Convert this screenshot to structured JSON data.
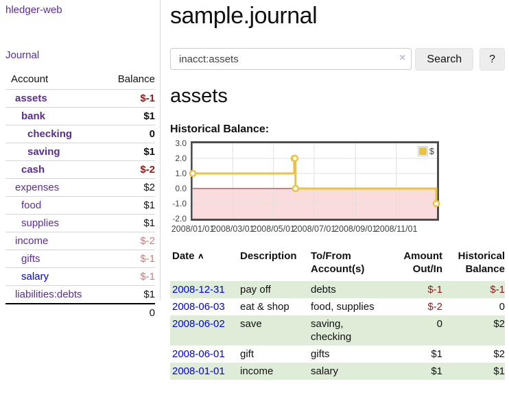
{
  "sidebar": {
    "app_title": "hledger-web",
    "journal_link": "Journal",
    "accounts_header": {
      "account": "Account",
      "balance": "Balance"
    },
    "accounts": [
      {
        "name": "assets",
        "balance": "$-1"
      },
      {
        "name": "bank",
        "balance": "$1"
      },
      {
        "name": "checking",
        "balance": "0"
      },
      {
        "name": "saving",
        "balance": "$1"
      },
      {
        "name": "cash",
        "balance": "$-2"
      },
      {
        "name": "expenses",
        "balance": "$2"
      },
      {
        "name": "food",
        "balance": "$1"
      },
      {
        "name": "supplies",
        "balance": "$1"
      },
      {
        "name": "income",
        "balance": "$-2"
      },
      {
        "name": "gifts",
        "balance": "$-1"
      },
      {
        "name": "salary",
        "balance": "$-1"
      },
      {
        "name": "liabilities:debts",
        "balance": "$1"
      }
    ],
    "total": "0"
  },
  "main": {
    "title": "sample.journal",
    "search": {
      "value": "inacct:assets",
      "clear_icon": "×",
      "button_label": "Search",
      "help_label": "?"
    },
    "account_heading": "assets",
    "register": {
      "headers": [
        "Date",
        "Description",
        "To/From Account(s)",
        "Amount Out/In",
        "Historical Balance"
      ],
      "sort_icon": "∧",
      "rows": [
        {
          "date": "2008-12-31",
          "description": "pay off",
          "accounts": "debts",
          "amount": "$-1",
          "balance": "$-1"
        },
        {
          "date": "2008-06-03",
          "description": "eat & shop",
          "accounts": "food, supplies",
          "amount": "$-2",
          "balance": "0"
        },
        {
          "date": "2008-06-02",
          "description": "save",
          "accounts": "saving, checking",
          "amount": "0",
          "balance": "$2"
        },
        {
          "date": "2008-06-01",
          "description": "gift",
          "accounts": "gifts",
          "amount": "$1",
          "balance": "$2"
        },
        {
          "date": "2008-01-01",
          "description": "income",
          "accounts": "salary",
          "amount": "$1",
          "balance": "$1"
        }
      ]
    }
  },
  "chart_data": {
    "type": "line",
    "title": "Historical Balance:",
    "step": true,
    "series": [
      {
        "name": "$",
        "color": "#EDC240",
        "points": [
          [
            "2008-01-01",
            1
          ],
          [
            "2008-06-01",
            2
          ],
          [
            "2008-06-02",
            2
          ],
          [
            "2008-06-03",
            0
          ],
          [
            "2008-12-31",
            -1
          ]
        ]
      }
    ],
    "xrange": [
      "2008-01-01",
      "2009-01-01"
    ],
    "ylim": [
      -2,
      3
    ],
    "xticks": [
      {
        "t": "2008-01-01",
        "label": "2008/01/01"
      },
      {
        "t": "2008-03-01",
        "label": "2008/03/01"
      },
      {
        "t": "2008-05-01",
        "label": "2008/05/01"
      },
      {
        "t": "2008-07-01",
        "label": "2008/07/01"
      },
      {
        "t": "2008-09-01",
        "label": "2008/09/01"
      },
      {
        "t": "2008-11-01",
        "label": "2008/11/01"
      }
    ],
    "yticks": [
      {
        "v": 3,
        "label": "3.0"
      },
      {
        "v": 2,
        "label": "2.0"
      },
      {
        "v": 1,
        "label": "1.0"
      },
      {
        "v": 0,
        "label": "0.0"
      },
      {
        "v": -1,
        "label": "-1.0"
      },
      {
        "v": -2,
        "label": "-2.0"
      }
    ],
    "grid": true,
    "legend_position": "top-right",
    "colors": {
      "negative_fill": "#fbdcdc",
      "zero_line": "#8e1515",
      "gridline": "#e0e0e0",
      "border": "#4d4d4d"
    }
  }
}
